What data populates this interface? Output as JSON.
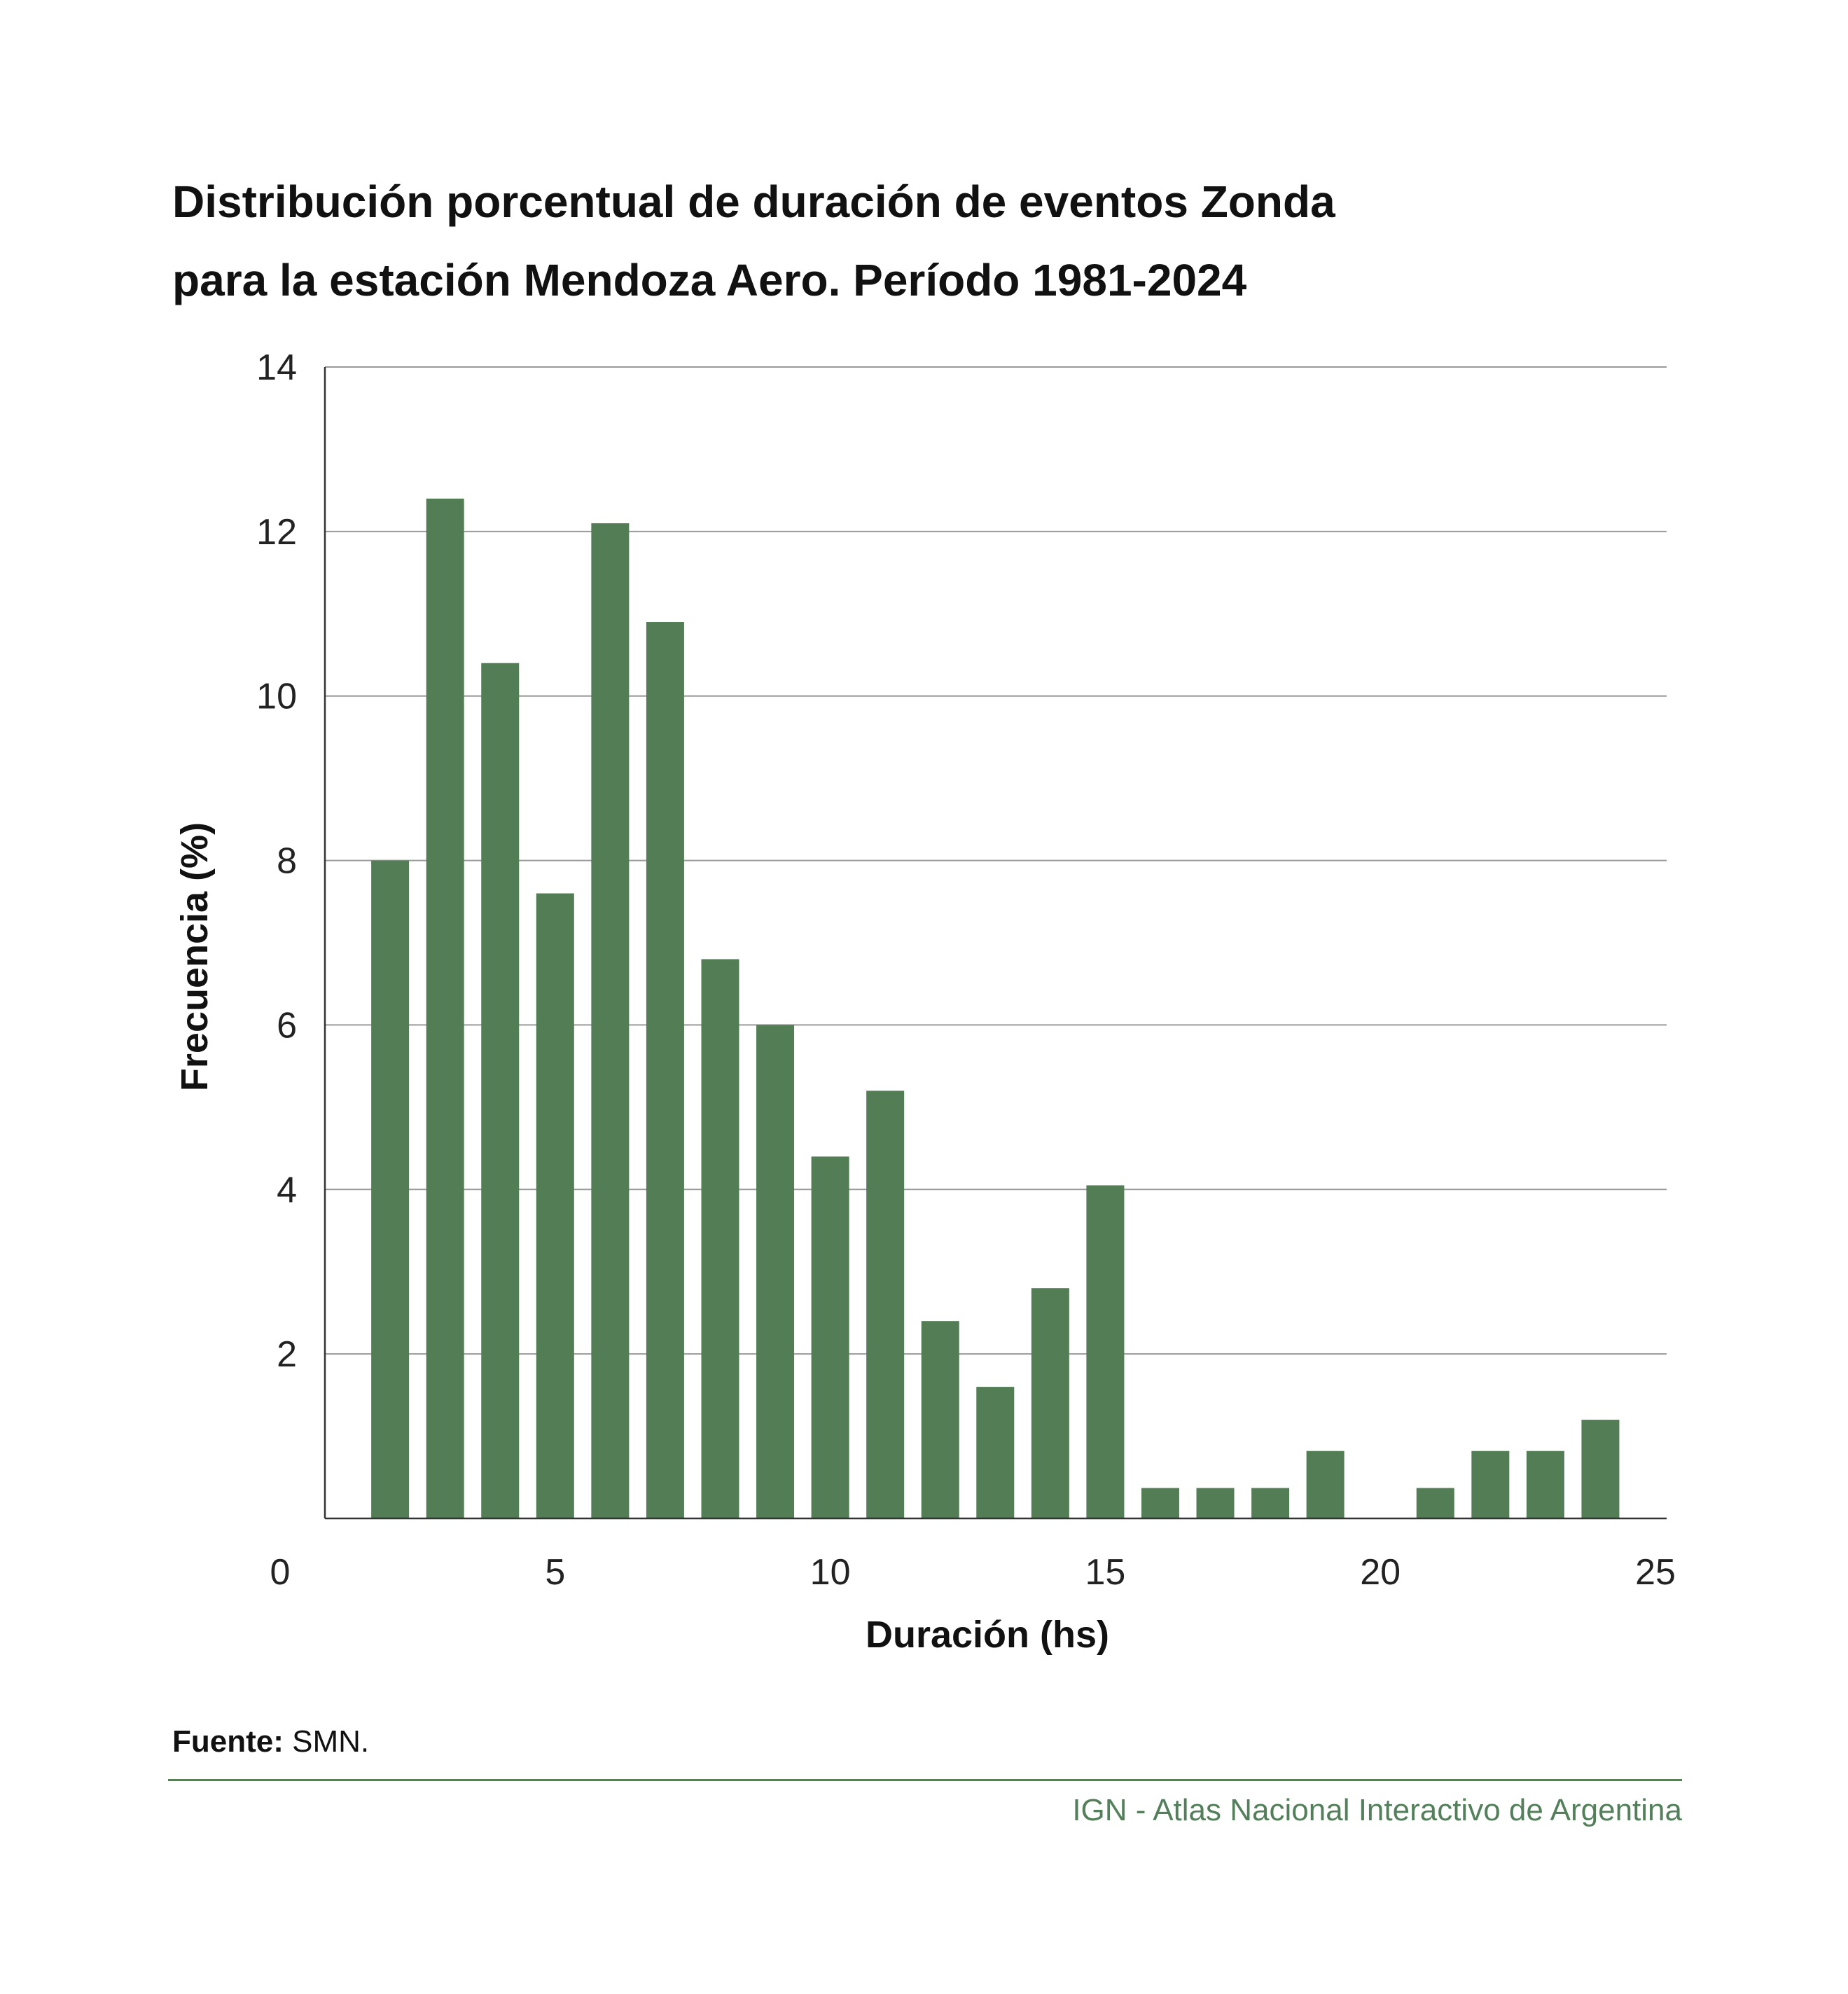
{
  "title_line1": "Distribución porcentual de duración de eventos Zonda",
  "title_line2": "para la estación Mendoza Aero. Período 1981-2024",
  "source_label": "Fuente:",
  "source_value": "SMN.",
  "credit": "IGN - Atlas Nacional Interactivo de Argentina",
  "colors": {
    "bar": "#537d55",
    "grid": "#9a9a9a",
    "divider": "#5a7f58",
    "credit_text": "#53805a"
  },
  "chart_data": {
    "type": "bar",
    "xlabel": "Duración (hs)",
    "ylabel": "Frecuencia (%)",
    "xlim": [
      0,
      25
    ],
    "ylim": [
      0,
      14
    ],
    "x_ticks": [
      "0",
      "5",
      "10",
      "15",
      "20",
      "25"
    ],
    "y_ticks": [
      "2",
      "4",
      "6",
      "8",
      "10",
      "12",
      "14"
    ],
    "grid": "horizontal",
    "x": [
      2,
      3,
      4,
      5,
      6,
      7,
      8,
      9,
      10,
      11,
      12,
      13,
      14,
      15,
      16,
      17,
      18,
      19,
      20,
      21,
      22,
      23,
      24
    ],
    "values": [
      8.0,
      12.4,
      10.4,
      7.6,
      12.1,
      10.9,
      6.8,
      6.0,
      4.4,
      5.2,
      2.4,
      1.6,
      2.8,
      4.05,
      0.37,
      0.37,
      0.37,
      0.82,
      0,
      0.37,
      0.82,
      0.82,
      1.2
    ]
  }
}
